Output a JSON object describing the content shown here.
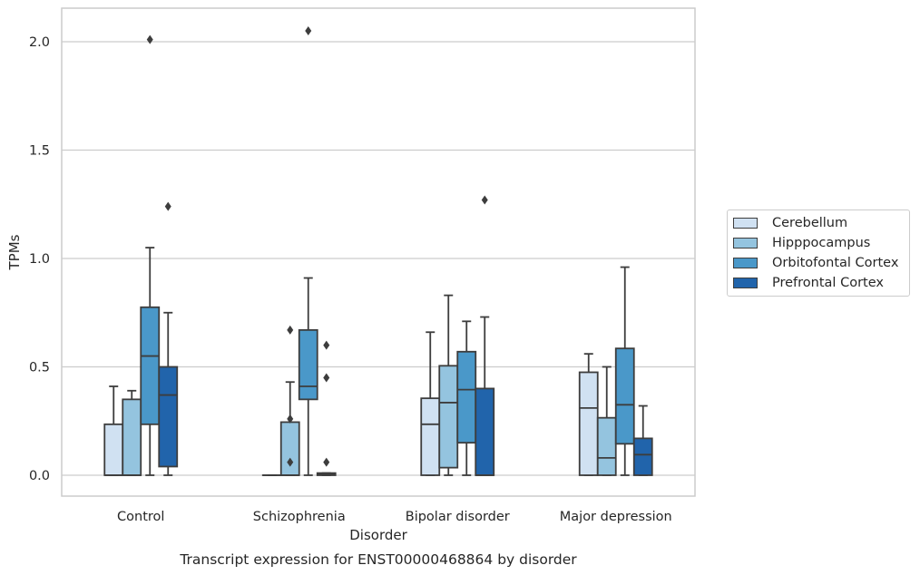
{
  "chart_data": {
    "type": "box",
    "title": "Transcript expression for ENST00000468864 by disorder",
    "xlabel": "Disorder",
    "ylabel": "TPMs",
    "ylim": [
      -0.1,
      2.15
    ],
    "yticks": [
      "0.0",
      "0.5",
      "1.0",
      "1.5",
      "2.0"
    ],
    "grid": "horizontal",
    "legend_placement": "right",
    "categories": [
      "Control",
      "Schizophrenia",
      "Bipolar disorder",
      "Major depression"
    ],
    "series": [
      {
        "name": "Cerebellum",
        "color": "#d0e1f2",
        "boxes": [
          {
            "whislo": 0.0,
            "q1": 0.0,
            "med": 0.0,
            "q3": 0.235,
            "whishi": 0.41,
            "fliers": []
          },
          {
            "whislo": 0.0,
            "q1": 0.0,
            "med": 0.0,
            "q3": 0.0,
            "whishi": 0.0,
            "fliers": []
          },
          {
            "whislo": 0.0,
            "q1": 0.0,
            "med": 0.235,
            "q3": 0.355,
            "whishi": 0.66,
            "fliers": []
          },
          {
            "whislo": 0.0,
            "q1": 0.0,
            "med": 0.31,
            "q3": 0.475,
            "whishi": 0.56,
            "fliers": []
          }
        ]
      },
      {
        "name": "Hipppocampus",
        "color": "#94c4df",
        "boxes": [
          {
            "whislo": 0.0,
            "q1": 0.0,
            "med": 0.0,
            "q3": 0.35,
            "whishi": 0.39,
            "fliers": []
          },
          {
            "whislo": 0.0,
            "q1": 0.0,
            "med": 0.0,
            "q3": 0.245,
            "whishi": 0.43,
            "fliers": [
              0.06,
              0.26,
              0.67
            ]
          },
          {
            "whislo": 0.0,
            "q1": 0.035,
            "med": 0.335,
            "q3": 0.505,
            "whishi": 0.83,
            "fliers": []
          },
          {
            "whislo": 0.0,
            "q1": 0.0,
            "med": 0.08,
            "q3": 0.265,
            "whishi": 0.5,
            "fliers": []
          }
        ]
      },
      {
        "name": "Orbitofontal Cortex",
        "color": "#4a98c9",
        "boxes": [
          {
            "whislo": 0.0,
            "q1": 0.235,
            "med": 0.55,
            "q3": 0.775,
            "whishi": 1.05,
            "fliers": [
              2.01
            ]
          },
          {
            "whislo": 0.0,
            "q1": 0.35,
            "med": 0.41,
            "q3": 0.67,
            "whishi": 0.91,
            "fliers": [
              2.05
            ]
          },
          {
            "whislo": 0.0,
            "q1": 0.15,
            "med": 0.395,
            "q3": 0.57,
            "whishi": 0.71,
            "fliers": []
          },
          {
            "whislo": 0.0,
            "q1": 0.145,
            "med": 0.325,
            "q3": 0.585,
            "whishi": 0.96,
            "fliers": []
          }
        ]
      },
      {
        "name": "Prefrontal Cortex",
        "color": "#2164ab",
        "boxes": [
          {
            "whislo": 0.0,
            "q1": 0.04,
            "med": 0.37,
            "q3": 0.5,
            "whishi": 0.75,
            "fliers": [
              1.24
            ]
          },
          {
            "whislo": 0.0,
            "q1": 0.0,
            "med": 0.005,
            "q3": 0.01,
            "whishi": 0.01,
            "fliers": [
              0.06,
              0.45,
              0.6
            ]
          },
          {
            "whislo": 0.0,
            "q1": 0.0,
            "med": 0.0,
            "q3": 0.4,
            "whishi": 0.73,
            "fliers": [
              1.27
            ]
          },
          {
            "whislo": 0.0,
            "q1": 0.0,
            "med": 0.095,
            "q3": 0.17,
            "whishi": 0.32,
            "fliers": []
          }
        ]
      }
    ]
  }
}
